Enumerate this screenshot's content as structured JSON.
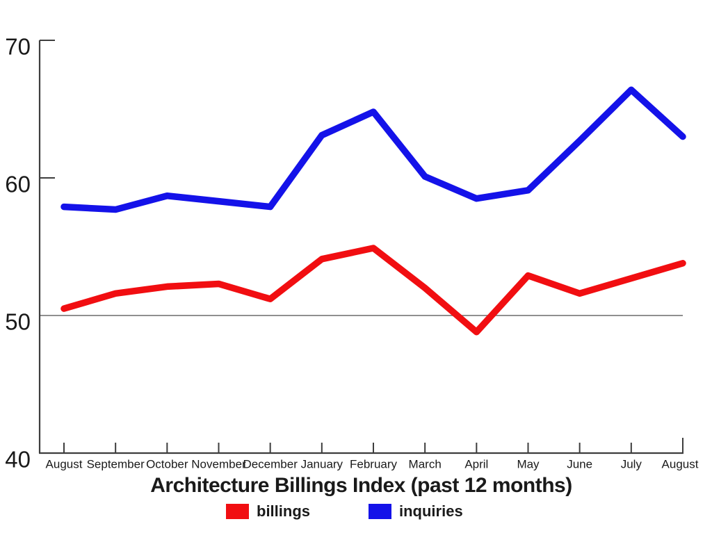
{
  "chart_data": {
    "type": "line",
    "title": "Architecture Billings Index (past 12 months)",
    "categories": [
      "August",
      "September",
      "October",
      "November",
      "December",
      "January",
      "February",
      "March",
      "April",
      "May",
      "June",
      "July",
      "August"
    ],
    "series": [
      {
        "name": "billings",
        "color": "#F10E11",
        "values": [
          50.5,
          51.6,
          52.1,
          52.3,
          51.2,
          54.1,
          54.9,
          52.0,
          48.8,
          52.9,
          51.6,
          52.7,
          53.8
        ]
      },
      {
        "name": "inquiries",
        "color": "#1412E9",
        "values": [
          57.9,
          57.7,
          58.7,
          58.3,
          57.9,
          63.1,
          64.8,
          60.1,
          58.5,
          59.1,
          62.7,
          66.4,
          63.0
        ]
      }
    ],
    "ylim": [
      40,
      70
    ],
    "yticks": [
      70,
      60,
      50,
      40
    ],
    "baseline_value": 50,
    "grid": "single horizontal baseline at 50",
    "legend_position": "bottom",
    "axis_color": "#3d3d3d",
    "baseline_color": "#7f7f7f",
    "text_color": "#1a1a1a"
  },
  "legend": {
    "items": [
      {
        "label": "billings",
        "color": "#F10E11"
      },
      {
        "label": "inquiries",
        "color": "#1412E9"
      }
    ]
  }
}
